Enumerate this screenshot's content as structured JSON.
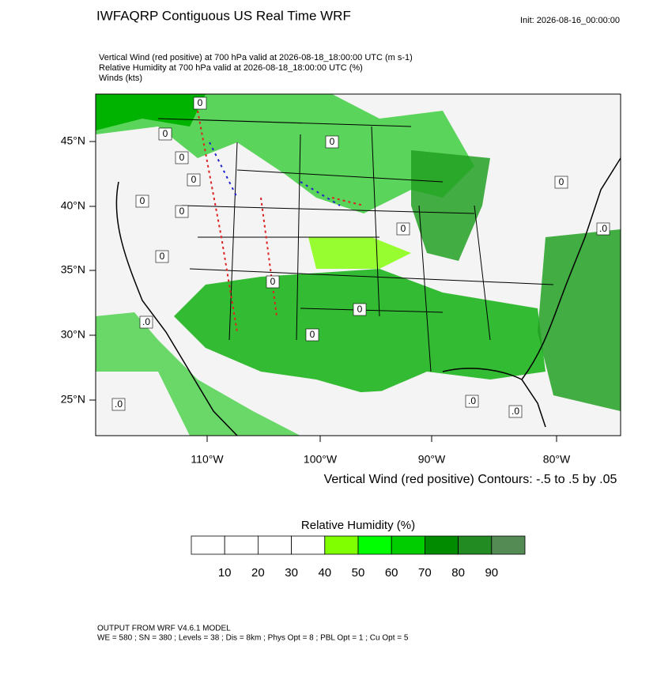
{
  "header": {
    "title": "IWFAQRP Contiguous US Real Time WRF",
    "init": "Init: 2026-08-16_00:00:00",
    "subtitle": [
      "Vertical Wind (red positive) at 700 hPa valid at 2026-08-18_18:00:00 UTC   (m s-1)",
      "Relative Humidity at 700 hPa valid at 2026-08-18_18:00:00 UTC   (%)",
      "Winds   (kts)"
    ]
  },
  "map": {
    "lat_labels": [
      "45°N",
      "40°N",
      "35°N",
      "30°N",
      "25°N"
    ],
    "lon_labels": [
      "110°W",
      "100°W",
      "90°W",
      "80°W"
    ],
    "contour_labels": [
      "0",
      "0",
      "0",
      "0",
      "0",
      "0",
      "0",
      "0",
      "0",
      "0",
      "0",
      "0",
      ".0",
      ".0",
      ".0",
      ".0",
      ".0",
      "0"
    ],
    "contour_info": "Vertical Wind (red positive) Contours: -.5 to .5 by .05"
  },
  "colorbar": {
    "title": "Relative Humidity  (%)",
    "levels": [
      10,
      20,
      30,
      40,
      50,
      60,
      70,
      80,
      90
    ],
    "colors": [
      "#ffffff",
      "#ffffff",
      "#ffffff",
      "#ffffff",
      "#80ff00",
      "#00ff00",
      "#00cd00",
      "#008b00",
      "#228b22",
      "#548b54"
    ],
    "range": [
      0,
      100
    ]
  },
  "footer": [
    "OUTPUT FROM WRF V4.6.1 MODEL",
    "WE = 580 ; SN = 380 ; Levels = 38 ; Dis = 8km ; Phys Opt = 8 ; PBL Opt = 1 ; Cu Opt = 5"
  ]
}
